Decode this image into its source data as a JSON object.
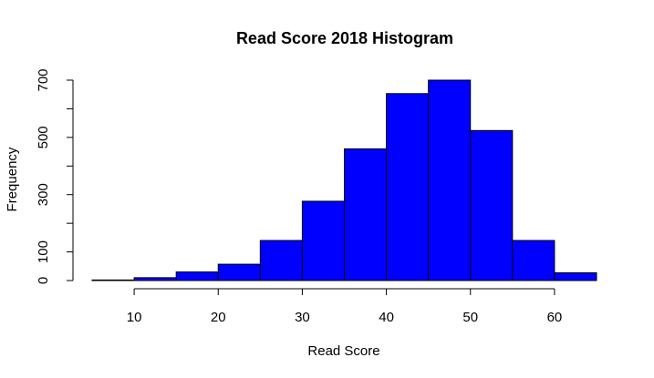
{
  "chart_data": {
    "type": "bar",
    "title": "Read Score 2018 Histogram",
    "xlabel": "Read Score",
    "ylabel": "Frequency",
    "bar_color": "#0000ff",
    "bins": [
      {
        "from": 5,
        "to": 10,
        "count": 2
      },
      {
        "from": 10,
        "to": 15,
        "count": 10
      },
      {
        "from": 15,
        "to": 20,
        "count": 30
      },
      {
        "from": 20,
        "to": 25,
        "count": 57
      },
      {
        "from": 25,
        "to": 30,
        "count": 140
      },
      {
        "from": 30,
        "to": 35,
        "count": 277
      },
      {
        "from": 35,
        "to": 40,
        "count": 460
      },
      {
        "from": 40,
        "to": 45,
        "count": 653
      },
      {
        "from": 45,
        "to": 50,
        "count": 700
      },
      {
        "from": 50,
        "to": 55,
        "count": 524
      },
      {
        "from": 55,
        "to": 60,
        "count": 140
      },
      {
        "from": 60,
        "to": 65,
        "count": 27
      }
    ],
    "xlim": [
      5,
      65
    ],
    "ylim": [
      0,
      700
    ],
    "x_ticks": [
      10,
      20,
      30,
      40,
      50,
      60
    ],
    "y_ticks_labeled": [
      0,
      100,
      300,
      500,
      700
    ],
    "y_ticks": [
      0,
      100,
      200,
      300,
      400,
      500,
      600,
      700
    ],
    "grid": false,
    "legend": "none"
  }
}
